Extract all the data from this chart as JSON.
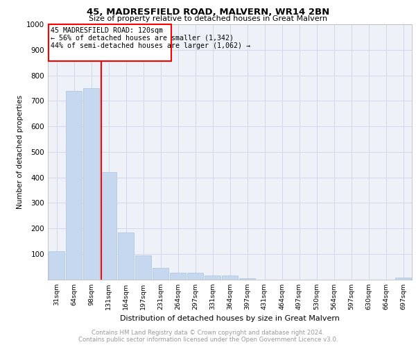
{
  "title": "45, MADRESFIELD ROAD, MALVERN, WR14 2BN",
  "subtitle": "Size of property relative to detached houses in Great Malvern",
  "xlabel": "Distribution of detached houses by size in Great Malvern",
  "ylabel": "Number of detached properties",
  "categories": [
    "31sqm",
    "64sqm",
    "98sqm",
    "131sqm",
    "164sqm",
    "197sqm",
    "231sqm",
    "264sqm",
    "297sqm",
    "331sqm",
    "364sqm",
    "397sqm",
    "431sqm",
    "464sqm",
    "497sqm",
    "530sqm",
    "564sqm",
    "597sqm",
    "630sqm",
    "664sqm",
    "697sqm"
  ],
  "values": [
    110,
    740,
    750,
    420,
    185,
    95,
    45,
    25,
    25,
    15,
    15,
    5,
    0,
    0,
    0,
    0,
    0,
    0,
    0,
    0,
    8
  ],
  "bar_color": "#c5d8f0",
  "bar_edge_color": "#a8c4e0",
  "red_line_label": "45 MADRESFIELD ROAD: 120sqm",
  "annotation_line2": "← 56% of detached houses are smaller (1,342)",
  "annotation_line3": "44% of semi-detached houses are larger (1,062) →",
  "ylim": [
    0,
    1000
  ],
  "yticks": [
    0,
    100,
    200,
    300,
    400,
    500,
    600,
    700,
    800,
    900,
    1000
  ],
  "grid_color": "#d0d8ea",
  "background_color": "#eef2f8",
  "footer_line1": "Contains HM Land Registry data © Crown copyright and database right 2024.",
  "footer_line2": "Contains public sector information licensed under the Open Government Licence v3.0."
}
